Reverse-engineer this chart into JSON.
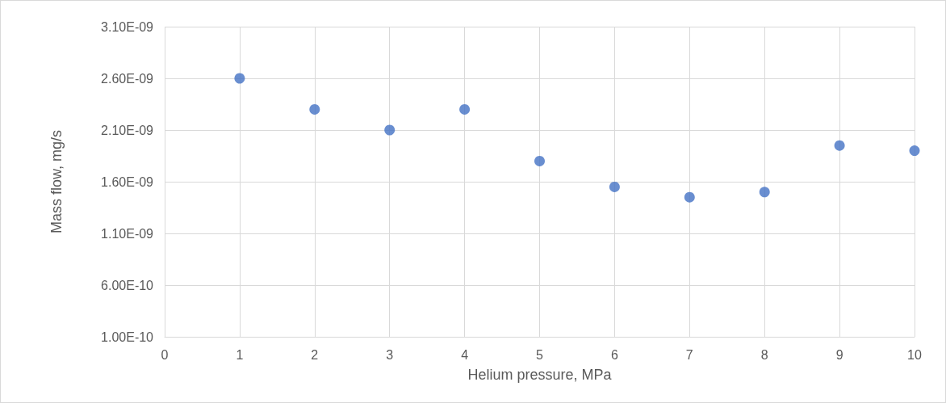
{
  "chart_data": {
    "type": "scatter",
    "xlabel": "Helium pressure, MPa",
    "ylabel": "Mass flow, mg/s",
    "x": [
      1,
      2,
      3,
      4,
      5,
      6,
      7,
      8,
      9,
      10
    ],
    "series": [
      {
        "color": "#4472c4",
        "values": [
          2.6e-09,
          2.3e-09,
          2.1e-09,
          2.3e-09,
          1.8e-09,
          1.55e-09,
          1.45e-09,
          1.5e-09,
          1.95e-09,
          1.9e-09
        ]
      }
    ],
    "xlim": [
      0,
      10
    ],
    "xticks": [
      0,
      1,
      2,
      3,
      4,
      5,
      6,
      7,
      8,
      9,
      10
    ],
    "ylim": [
      1e-10,
      3.1e-09
    ],
    "yticks": [
      {
        "value": 1e-10,
        "label": "1.00E-10"
      },
      {
        "value": 6e-10,
        "label": "6.00E-10"
      },
      {
        "value": 1.1e-09,
        "label": "1.10E-09"
      },
      {
        "value": 1.6e-09,
        "label": "1.60E-09"
      },
      {
        "value": 2.1e-09,
        "label": "2.10E-09"
      },
      {
        "value": 2.6e-09,
        "label": "2.60E-09"
      },
      {
        "value": 3.1e-09,
        "label": "3.10E-09"
      }
    ],
    "grid": true,
    "marker": "circle"
  }
}
